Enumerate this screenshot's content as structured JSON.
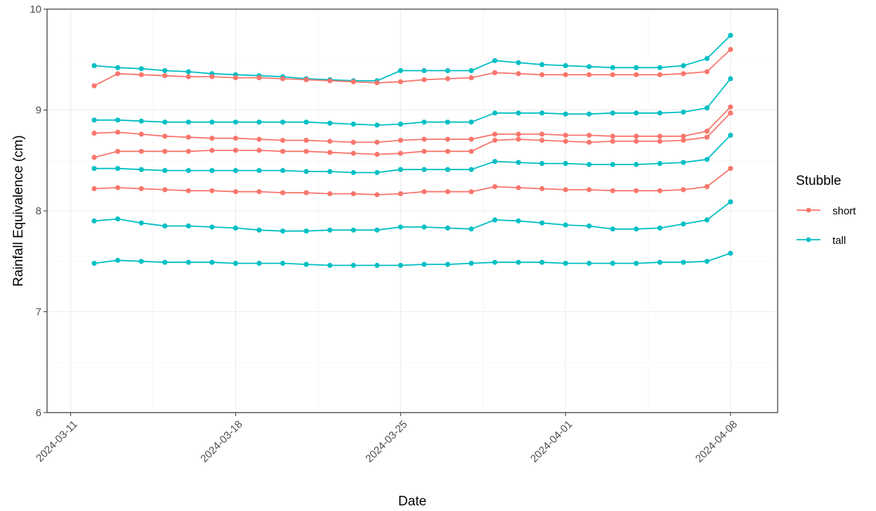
{
  "chart_data": {
    "type": "line",
    "xlabel": "Date",
    "ylabel": "Rainfall Equivalence (cm)",
    "ylim": [
      6,
      10
    ],
    "xlim": [
      "2024-03-10",
      "2024-04-10"
    ],
    "x_ticks": [
      "2024-03-11",
      "2024-03-18",
      "2024-03-25",
      "2024-04-01",
      "2024-04-08"
    ],
    "y_ticks": [
      6,
      7,
      8,
      9,
      10
    ],
    "grid": true,
    "legend": {
      "title": "Stubble",
      "placement": "right",
      "entries": [
        {
          "label": "short",
          "color": "#F8766D"
        },
        {
          "label": "tall",
          "color": "#00BFC4"
        }
      ]
    },
    "x": [
      "2024-03-12",
      "2024-03-13",
      "2024-03-14",
      "2024-03-15",
      "2024-03-16",
      "2024-03-17",
      "2024-03-18",
      "2024-03-19",
      "2024-03-20",
      "2024-03-21",
      "2024-03-22",
      "2024-03-23",
      "2024-03-24",
      "2024-03-25",
      "2024-03-26",
      "2024-03-27",
      "2024-03-28",
      "2024-03-29",
      "2024-03-30",
      "2024-03-31",
      "2024-04-01",
      "2024-04-02",
      "2024-04-03",
      "2024-04-04",
      "2024-04-05",
      "2024-04-06",
      "2024-04-07",
      "2024-04-08"
    ],
    "series": [
      {
        "group": "tall",
        "color": "#00BFC4",
        "values": [
          9.44,
          9.42,
          9.41,
          9.39,
          9.38,
          9.36,
          9.35,
          9.34,
          9.33,
          9.31,
          9.3,
          9.29,
          9.29,
          9.39,
          9.39,
          9.39,
          9.39,
          9.49,
          9.47,
          9.45,
          9.44,
          9.43,
          9.42,
          9.42,
          9.42,
          9.44,
          9.51,
          9.74
        ]
      },
      {
        "group": "short",
        "color": "#F8766D",
        "values": [
          9.24,
          9.36,
          9.35,
          9.34,
          9.33,
          9.33,
          9.32,
          9.32,
          9.31,
          9.3,
          9.29,
          9.28,
          9.27,
          9.28,
          9.3,
          9.31,
          9.32,
          9.37,
          9.36,
          9.35,
          9.35,
          9.35,
          9.35,
          9.35,
          9.35,
          9.36,
          9.38,
          9.6
        ]
      },
      {
        "group": "tall",
        "color": "#00BFC4",
        "values": [
          8.9,
          8.9,
          8.89,
          8.88,
          8.88,
          8.88,
          8.88,
          8.88,
          8.88,
          8.88,
          8.87,
          8.86,
          8.85,
          8.86,
          8.88,
          8.88,
          8.88,
          8.97,
          8.97,
          8.97,
          8.96,
          8.96,
          8.97,
          8.97,
          8.97,
          8.98,
          9.02,
          9.31
        ]
      },
      {
        "group": "short",
        "color": "#F8766D",
        "values": [
          8.77,
          8.78,
          8.76,
          8.74,
          8.73,
          8.72,
          8.72,
          8.71,
          8.7,
          8.7,
          8.69,
          8.68,
          8.68,
          8.7,
          8.71,
          8.71,
          8.71,
          8.76,
          8.76,
          8.76,
          8.75,
          8.75,
          8.74,
          8.74,
          8.74,
          8.74,
          8.79,
          9.03
        ]
      },
      {
        "group": "short",
        "color": "#F8766D",
        "values": [
          8.53,
          8.59,
          8.59,
          8.59,
          8.59,
          8.6,
          8.6,
          8.6,
          8.59,
          8.59,
          8.58,
          8.57,
          8.56,
          8.57,
          8.59,
          8.59,
          8.59,
          8.7,
          8.71,
          8.7,
          8.69,
          8.68,
          8.69,
          8.69,
          8.69,
          8.7,
          8.73,
          8.97
        ]
      },
      {
        "group": "tall",
        "color": "#00BFC4",
        "values": [
          8.42,
          8.42,
          8.41,
          8.4,
          8.4,
          8.4,
          8.4,
          8.4,
          8.4,
          8.39,
          8.39,
          8.38,
          8.38,
          8.41,
          8.41,
          8.41,
          8.41,
          8.49,
          8.48,
          8.47,
          8.47,
          8.46,
          8.46,
          8.46,
          8.47,
          8.48,
          8.51,
          8.75
        ]
      },
      {
        "group": "short",
        "color": "#F8766D",
        "values": [
          8.22,
          8.23,
          8.22,
          8.21,
          8.2,
          8.2,
          8.19,
          8.19,
          8.18,
          8.18,
          8.17,
          8.17,
          8.16,
          8.17,
          8.19,
          8.19,
          8.19,
          8.24,
          8.23,
          8.22,
          8.21,
          8.21,
          8.2,
          8.2,
          8.2,
          8.21,
          8.24,
          8.42
        ]
      },
      {
        "group": "tall",
        "color": "#00BFC4",
        "values": [
          7.9,
          7.92,
          7.88,
          7.85,
          7.85,
          7.84,
          7.83,
          7.81,
          7.8,
          7.8,
          7.81,
          7.81,
          7.81,
          7.84,
          7.84,
          7.83,
          7.82,
          7.91,
          7.9,
          7.88,
          7.86,
          7.85,
          7.82,
          7.82,
          7.83,
          7.87,
          7.91,
          8.09
        ]
      },
      {
        "group": "tall",
        "color": "#00BFC4",
        "values": [
          7.48,
          7.51,
          7.5,
          7.49,
          7.49,
          7.49,
          7.48,
          7.48,
          7.48,
          7.47,
          7.46,
          7.46,
          7.46,
          7.46,
          7.47,
          7.47,
          7.48,
          7.49,
          7.49,
          7.49,
          7.48,
          7.48,
          7.48,
          7.48,
          7.49,
          7.49,
          7.5,
          7.58
        ]
      }
    ]
  }
}
